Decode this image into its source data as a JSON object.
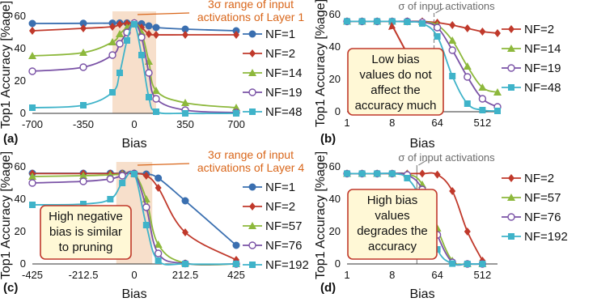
{
  "chart_data": [
    {
      "type": "line",
      "panel_label": "(a)",
      "xlabel": "Bias",
      "ylabel": "Top1 Accuracy [%age]",
      "xlim": [
        -700,
        700
      ],
      "ylim": [
        0,
        60
      ],
      "x_ticks": [
        "-700",
        "-350",
        "0",
        "350",
        "700"
      ],
      "y_ticks": [
        "0",
        "20",
        "40",
        "60"
      ],
      "x_scale": "linear",
      "grid": false,
      "legend_position": "right",
      "annotation": {
        "line1": "3σ range of input",
        "line2": "activations of Layer 1",
        "shaded_range": [
          -150,
          150
        ]
      },
      "series": [
        {
          "name": "NF=1",
          "color": "#3a6fb0",
          "marker": "circle",
          "x": [
            -700,
            -350,
            -150,
            -100,
            -50,
            0,
            50,
            100,
            150,
            350,
            700
          ],
          "y": [
            55.5,
            55.6,
            55.7,
            55.8,
            55.8,
            55.8,
            55.3,
            54.0,
            53.0,
            52.0,
            51.0
          ]
        },
        {
          "name": "NF=2",
          "color": "#c0392b",
          "marker": "diamond",
          "x": [
            -700,
            -350,
            -150,
            -100,
            -50,
            0,
            50,
            100,
            150,
            350,
            700
          ],
          "y": [
            51.0,
            52.5,
            53.5,
            55.0,
            55.5,
            55.8,
            53.0,
            49.0,
            48.5,
            48.5,
            48.5
          ]
        },
        {
          "name": "NF=14",
          "color": "#8db83c",
          "marker": "triangle",
          "x": [
            -700,
            -350,
            -150,
            -100,
            -50,
            0,
            50,
            100,
            150,
            350,
            700
          ],
          "y": [
            35.5,
            37.5,
            44.0,
            49.0,
            53.0,
            55.8,
            50.0,
            32.0,
            14.0,
            6.5,
            3.5
          ]
        },
        {
          "name": "NF=19",
          "color": "#7a52a6",
          "marker": "circle-open",
          "x": [
            -700,
            -350,
            -150,
            -100,
            -50,
            0,
            50,
            100,
            150,
            350,
            700
          ],
          "y": [
            26.0,
            28.5,
            36.0,
            43.0,
            50.0,
            55.8,
            47.0,
            25.0,
            9.0,
            2.0,
            0.5
          ]
        },
        {
          "name": "NF=48",
          "color": "#3fb3c9",
          "marker": "square",
          "x": [
            -700,
            -350,
            -150,
            -100,
            -50,
            0,
            50,
            100,
            150,
            350,
            700
          ],
          "y": [
            3.5,
            5.0,
            13.0,
            25.0,
            45.0,
            55.0,
            36.0,
            10.0,
            1.0,
            0.0,
            0.0
          ]
        }
      ]
    },
    {
      "type": "line",
      "panel_label": "(b)",
      "xlabel": "Bias",
      "ylabel": "Top1 Accuracy [%age]",
      "xlim": [
        1,
        1024
      ],
      "ylim": [
        0,
        60
      ],
      "x_ticks": [
        "1",
        "8",
        "64",
        "512"
      ],
      "y_ticks": [
        "0",
        "20",
        "40",
        "60"
      ],
      "x_scale": "log2",
      "grid": false,
      "legend_position": "right",
      "annotation": {
        "text": "σ of input activations",
        "marker_x": 55
      },
      "callout": {
        "lines": [
          "Low bias",
          "values do not",
          "affect the",
          "accuracy much"
        ]
      },
      "series": [
        {
          "name": "NF=2",
          "color": "#c0392b",
          "marker": "diamond",
          "x": [
            1,
            2,
            4,
            8,
            16,
            32,
            64,
            128,
            256,
            512,
            1024
          ],
          "y": [
            55.8,
            55.8,
            55.8,
            55.8,
            55.8,
            55.8,
            55.0,
            53.5,
            51.5,
            49.5,
            48.5
          ]
        },
        {
          "name": "NF=14",
          "color": "#8db83c",
          "marker": "triangle",
          "x": [
            1,
            2,
            4,
            8,
            16,
            32,
            64,
            128,
            256,
            512,
            1024
          ],
          "y": [
            55.8,
            55.8,
            55.8,
            55.8,
            55.8,
            55.5,
            53.5,
            44.0,
            28.0,
            15.0,
            12.0
          ]
        },
        {
          "name": "NF=19",
          "color": "#7a52a6",
          "marker": "circle-open",
          "x": [
            1,
            2,
            4,
            8,
            16,
            32,
            64,
            128,
            256,
            512,
            1024
          ],
          "y": [
            55.8,
            55.8,
            55.8,
            55.8,
            55.8,
            55.3,
            52.0,
            38.0,
            21.5,
            8.0,
            3.0
          ]
        },
        {
          "name": "NF=48",
          "color": "#3fb3c9",
          "marker": "square",
          "x": [
            1,
            2,
            4,
            8,
            16,
            32,
            64,
            128,
            256,
            512,
            1024
          ],
          "y": [
            55.8,
            55.8,
            55.8,
            55.8,
            55.5,
            54.5,
            46.5,
            22.0,
            5.0,
            1.0,
            0.5
          ]
        }
      ]
    },
    {
      "type": "line",
      "panel_label": "(c)",
      "xlabel": "Bias",
      "ylabel": "Top1 Accuracy [%age]",
      "xlim": [
        -425,
        425
      ],
      "ylim": [
        0,
        60
      ],
      "x_ticks": [
        "-425",
        "-212.5",
        "0",
        "212.5",
        "425"
      ],
      "y_ticks": [
        "0",
        "20",
        "40",
        "60"
      ],
      "x_scale": "linear",
      "grid": false,
      "legend_position": "right",
      "annotation": {
        "line1": "3σ range of input",
        "line2": "activations of Layer 4",
        "shaded_range": [
          -75,
          75
        ]
      },
      "callout": {
        "lines": [
          "High negative",
          "bias is similar",
          "to pruning"
        ]
      },
      "series": [
        {
          "name": "NF=1",
          "color": "#3a6fb0",
          "marker": "circle",
          "x": [
            -425,
            -212.5,
            -100,
            -50,
            0,
            50,
            100,
            212.5,
            425
          ],
          "y": [
            56.0,
            56.0,
            56.0,
            56.0,
            56.0,
            55.5,
            53.0,
            39.0,
            11.5
          ]
        },
        {
          "name": "NF=2",
          "color": "#c0392b",
          "marker": "diamond",
          "x": [
            -425,
            -212.5,
            -100,
            -50,
            0,
            50,
            100,
            212.5,
            425
          ],
          "y": [
            55.8,
            55.8,
            55.8,
            55.8,
            55.8,
            54.5,
            47.0,
            19.5,
            2.5
          ]
        },
        {
          "name": "NF=57",
          "color": "#8db83c",
          "marker": "triangle",
          "x": [
            -425,
            -212.5,
            -100,
            -50,
            0,
            50,
            100,
            212.5,
            425
          ],
          "y": [
            54.0,
            54.5,
            55.0,
            55.5,
            55.8,
            40.0,
            12.0,
            0.5,
            0.0
          ]
        },
        {
          "name": "NF=76",
          "color": "#7a52a6",
          "marker": "circle-open",
          "x": [
            -425,
            -212.5,
            -100,
            -50,
            0,
            50,
            100,
            212.5,
            425
          ],
          "y": [
            50.0,
            51.0,
            52.5,
            54.5,
            55.8,
            35.0,
            6.5,
            0.2,
            0.0
          ]
        },
        {
          "name": "NF=192",
          "color": "#3fb3c9",
          "marker": "square",
          "x": [
            -425,
            -212.5,
            -100,
            -50,
            0,
            50,
            100,
            212.5,
            425
          ],
          "y": [
            36.5,
            37.0,
            40.0,
            50.0,
            55.5,
            24.0,
            2.0,
            0.0,
            0.0
          ]
        }
      ]
    },
    {
      "type": "line",
      "panel_label": "(d)",
      "xlabel": "Bias",
      "ylabel": "Top1 Accuracy [%age]",
      "xlim": [
        1,
        1024
      ],
      "ylim": [
        0,
        60
      ],
      "x_ticks": [
        "1",
        "8",
        "64",
        "512"
      ],
      "y_ticks": [
        "0",
        "20",
        "40",
        "60"
      ],
      "x_scale": "log2",
      "grid": false,
      "legend_position": "right",
      "annotation": {
        "text": "σ of input activations",
        "marker_x": 25
      },
      "callout": {
        "lines": [
          "High bias",
          "values",
          "degrades the",
          "accuracy"
        ]
      },
      "series": [
        {
          "name": "NF=2",
          "color": "#c0392b",
          "marker": "diamond",
          "x": [
            1,
            2,
            4,
            8,
            16,
            32,
            64,
            128,
            256,
            512
          ],
          "y": [
            55.8,
            55.8,
            55.8,
            55.8,
            55.8,
            55.8,
            55.2,
            45.0,
            20.0,
            2.0
          ]
        },
        {
          "name": "NF=57",
          "color": "#8db83c",
          "marker": "triangle",
          "x": [
            1,
            2,
            4,
            8,
            16,
            32,
            64,
            128,
            256,
            512
          ],
          "y": [
            55.8,
            55.8,
            55.8,
            55.8,
            55.5,
            49.0,
            22.0,
            2.0,
            0.0,
            0.0
          ]
        },
        {
          "name": "NF=76",
          "color": "#7a52a6",
          "marker": "circle-open",
          "x": [
            1,
            2,
            4,
            8,
            16,
            32,
            64,
            128,
            256,
            512
          ],
          "y": [
            55.8,
            55.8,
            55.8,
            55.8,
            55.0,
            46.0,
            18.0,
            1.0,
            0.0,
            0.0
          ]
        },
        {
          "name": "NF=192",
          "color": "#3fb3c9",
          "marker": "square",
          "x": [
            1,
            2,
            4,
            8,
            16,
            32,
            64,
            128,
            256,
            512
          ],
          "y": [
            55.8,
            55.8,
            55.8,
            55.8,
            53.0,
            38.0,
            9.0,
            0.2,
            0.0,
            0.0
          ]
        }
      ]
    }
  ]
}
